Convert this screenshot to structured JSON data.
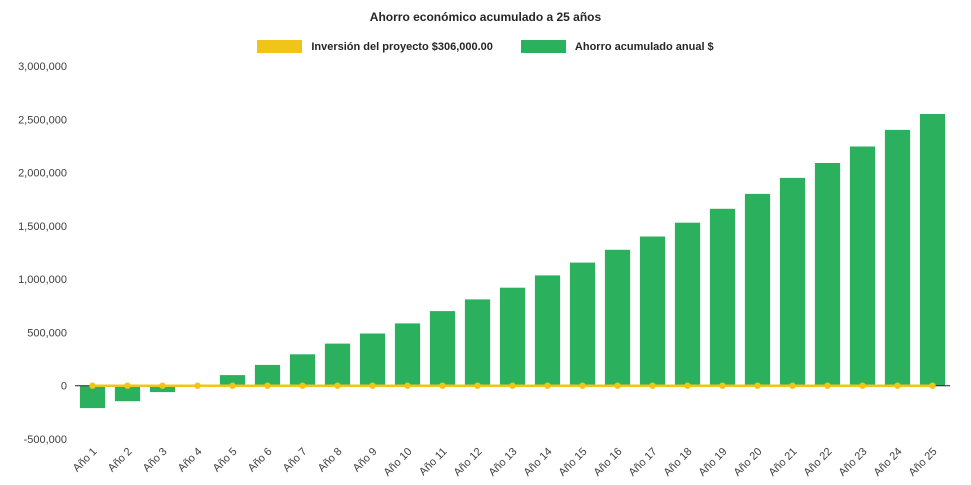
{
  "title": "Ahorro económico acumulado a 25 años",
  "legend": {
    "items": [
      {
        "label": "Inversión del proyecto $306,000.00",
        "color": "#f0c419",
        "marker": "line"
      },
      {
        "label": "Ahorro acumulado anual $",
        "color": "#2bb05d",
        "marker": "bar"
      }
    ]
  },
  "chart_data": {
    "type": "bar",
    "title": "Ahorro económico acumulado a 25 años",
    "categories": [
      "Año 1",
      "Año 2",
      "Año 3",
      "Año 4",
      "Año 5",
      "Año 6",
      "Año 7",
      "Año 8",
      "Año 9",
      "Año 10",
      "Año 11",
      "Año 12",
      "Año 13",
      "Año 14",
      "Año 15",
      "Año 16",
      "Año 17",
      "Año 18",
      "Año 19",
      "Año 20",
      "Año 21",
      "Año 22",
      "Año 23",
      "Año 24",
      "Año 25"
    ],
    "series": [
      {
        "name": "Ahorro acumulado anual $",
        "type": "bar",
        "color": "#2bb05d",
        "values": [
          -210000,
          -145000,
          -60000,
          -10000,
          100000,
          195000,
          295000,
          395000,
          490000,
          585000,
          700000,
          810000,
          920000,
          1035000,
          1155000,
          1275000,
          1400000,
          1530000,
          1660000,
          1800000,
          1950000,
          2090000,
          2245000,
          2400000,
          2550000
        ]
      },
      {
        "name": "Inversión del proyecto $306,000.00",
        "type": "line",
        "color": "#f0c419",
        "values": [
          0,
          0,
          0,
          0,
          0,
          0,
          0,
          0,
          0,
          0,
          0,
          0,
          0,
          0,
          0,
          0,
          0,
          0,
          0,
          0,
          0,
          0,
          0,
          0,
          0
        ]
      }
    ],
    "ylim": [
      -500000,
      3000000
    ],
    "ytick_step": 500000,
    "grid": false,
    "legend_position": "top",
    "xlabel": "",
    "ylabel": "",
    "axis_text_color": "#404040",
    "axis_line_color": "#262626"
  }
}
